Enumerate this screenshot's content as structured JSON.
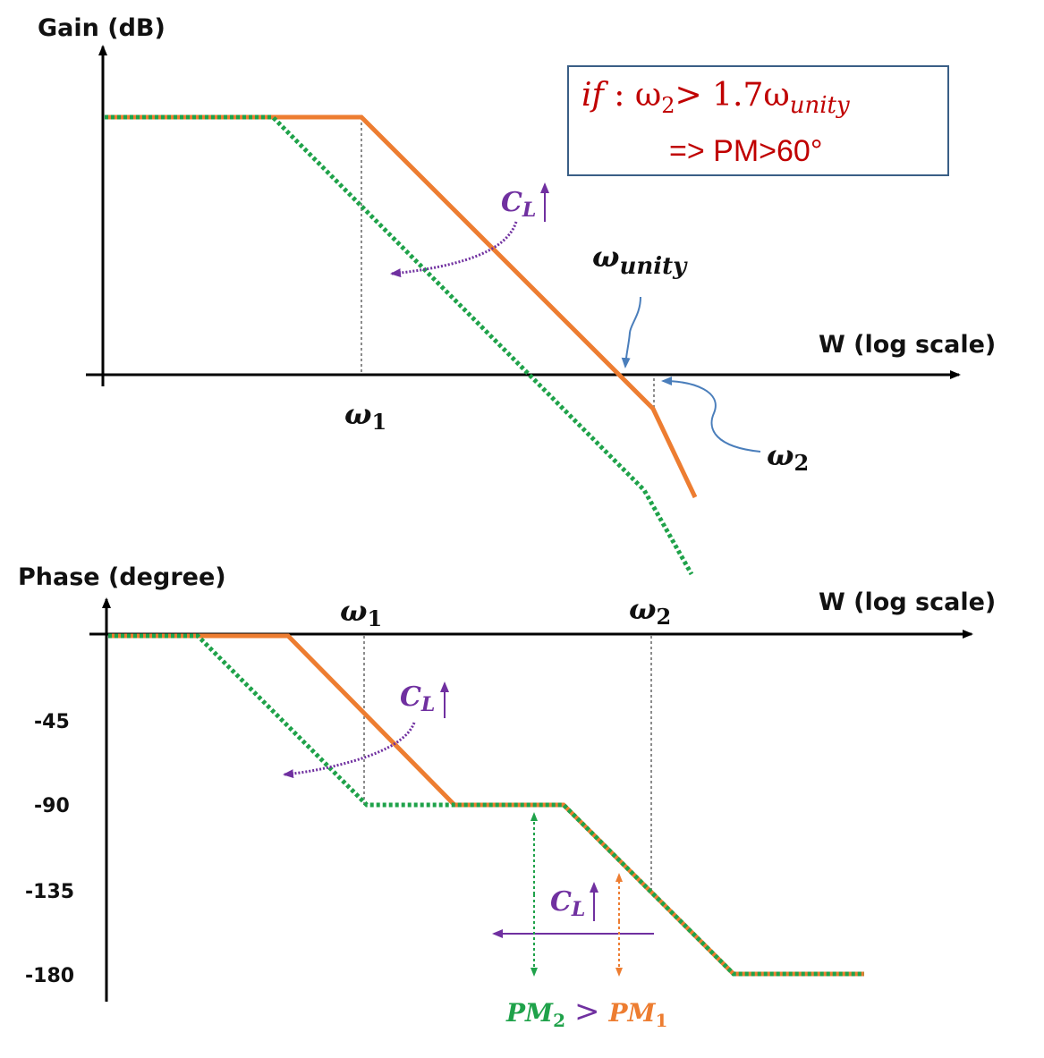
{
  "gain_plot": {
    "y_axis_label": "Gain (dB)",
    "x_axis_label": "W (log scale)",
    "omega1": "ω",
    "omega1_sub": "1",
    "omega2": "ω",
    "omega2_sub": "2",
    "omega_unity": "ω",
    "omega_unity_sub": "unity",
    "cl_label": "C",
    "cl_sub": "L",
    "condition_box": {
      "line1_if": "if",
      "line1_rest": " : ω",
      "line1_sub2": "2",
      "line1_gt": "> 1.7ω",
      "line1_sub_unity": "unity",
      "line2": "=> PM>60°"
    }
  },
  "phase_plot": {
    "y_axis_label": "Phase (degree)",
    "x_axis_label": "W (log scale)",
    "omega1": "ω",
    "omega1_sub": "1",
    "omega2": "ω",
    "omega2_sub": "2",
    "y_ticks": [
      "-45",
      "-90",
      "-135",
      "-180"
    ],
    "cl_label_1": "C",
    "cl_sub_1": "L",
    "cl_label_2": "C",
    "cl_sub_2": "L",
    "pm2": "PM",
    "pm2_sub": "2",
    "pm_gt": ">",
    "pm1": "PM",
    "pm1_sub": "1"
  },
  "colors": {
    "original_curve": "#ed7d31",
    "increased_cl_curve": "#1fa24a",
    "cl_arrow": "#7030a0",
    "annotation_curve": "#4a7ebb",
    "condition_text": "#c00000",
    "condition_box_border": "#3a5f86"
  }
}
